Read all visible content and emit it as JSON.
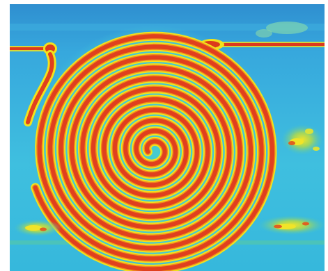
{
  "image": {
    "subject": "thermal-spiral-coil",
    "palette": {
      "background_top": "#2f8fd0",
      "background_mid": "#37b6e0",
      "background_bottom": "#36b8dc",
      "field_cyan": "#43c7d6",
      "ring_hot": "#e0401e",
      "ring_warm": "#f08a1e",
      "halo": "#f2e21c",
      "band_green": "#52c590",
      "lead_red": "#dc3a1c"
    },
    "spiral_turns": 11
  }
}
